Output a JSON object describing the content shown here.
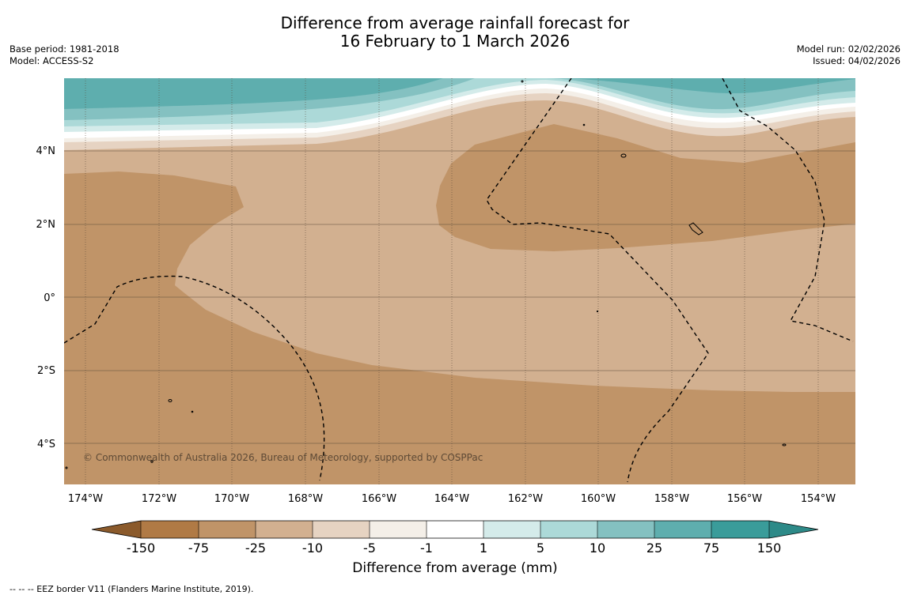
{
  "header": {
    "title_line1": "Difference from average rainfall forecast for",
    "title_line2": "16 February to 1 March 2026",
    "base_period": "Base period: 1981-2018",
    "model": "Model: ACCESS-S2",
    "model_run": "Model run: 02/02/2026",
    "issued": "Issued: 04/02/2026"
  },
  "map": {
    "lat_labels": [
      "4°N",
      "2°N",
      "0°",
      "2°S",
      "4°S"
    ],
    "lon_labels": [
      "174°W",
      "172°W",
      "170°W",
      "168°W",
      "166°W",
      "164°W",
      "162°W",
      "160°W",
      "158°W",
      "156°W",
      "154°W"
    ],
    "copyright": "© Commonwealth of Australia 2026, Bureau of Meteorology, supported by COSPPac"
  },
  "colorbar": {
    "ticks": [
      "-150",
      "-75",
      "-25",
      "-10",
      "-5",
      "-1",
      "1",
      "5",
      "10",
      "25",
      "75",
      "150"
    ],
    "colors": [
      "#8b5a2b",
      "#b07a45",
      "#c09468",
      "#d2b090",
      "#e6d3c2",
      "#f4efe8",
      "#ffffff",
      "#d4ebea",
      "#acd9d8",
      "#84c1c1",
      "#5eaeae",
      "#3a9c9a",
      "#2d8a88"
    ],
    "label": "Difference from average (mm)"
  },
  "footnote": "--  --  -- EEZ border V11 (Flanders Marine Institute, 2019)."
}
